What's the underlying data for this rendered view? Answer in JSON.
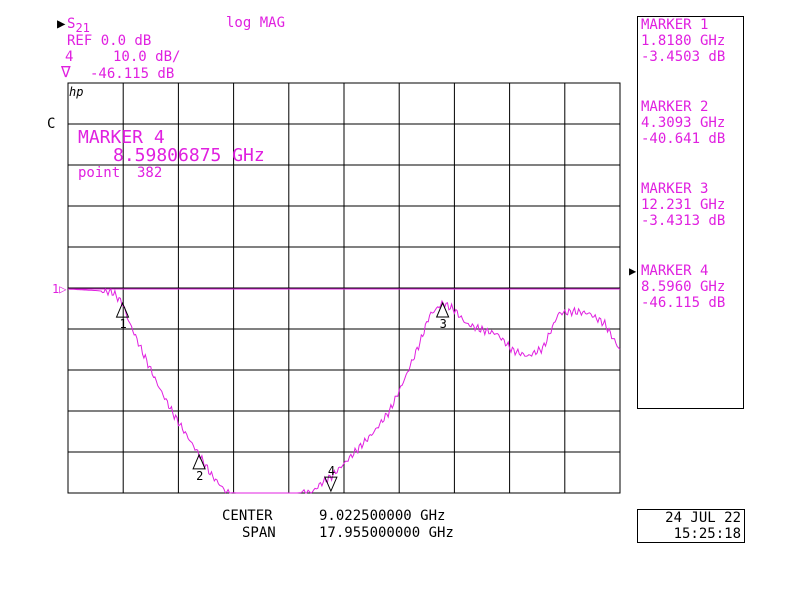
{
  "header": {
    "param_arrow": "▶",
    "param": "S",
    "param_sub": "21",
    "format": "log MAG",
    "ref": "REF 0.0 dB",
    "scale_channel": "4",
    "scale": "10.0 dB/",
    "delta_symbol": "∇",
    "marker_value": "-46.115 dB",
    "hp_logo": "hp",
    "cal_flag": "C"
  },
  "active_marker_box": {
    "title": "MARKER 4",
    "frequency": "8.59806875 GHz",
    "point": "point  382"
  },
  "ref_label": "1▷",
  "marker_panel": [
    {
      "label": "MARKER 1",
      "freq": "1.8180 GHz",
      "value": "-3.4503 dB",
      "active": false
    },
    {
      "label": "MARKER 2",
      "freq": "4.3093 GHz",
      "value": "-40.641 dB",
      "active": false
    },
    {
      "label": "MARKER 3",
      "freq": "12.231 GHz",
      "value": "-3.4313 dB",
      "active": false
    },
    {
      "label": "MARKER 4",
      "freq": "8.5960 GHz",
      "value": "-46.115 dB",
      "active": true
    }
  ],
  "active_pointer": "▶",
  "footer": {
    "center_label": "CENTER",
    "center_value": "9.022500000 GHz",
    "span_label": "SPAN",
    "span_value": "17.955000000 GHz"
  },
  "datetime": {
    "date": "24 JUL 22",
    "time": "15:25:18"
  },
  "colors": {
    "trace": "#e020e0",
    "grid": "#000000",
    "background": "#ffffff"
  },
  "chart_data": {
    "type": "line",
    "xlabel": "",
    "ylabel": "",
    "xlim": [
      0.045,
      18.0
    ],
    "ylim": [
      -50,
      0
    ],
    "reference_level_db": 0,
    "grid": true,
    "series": [
      {
        "x": [
          0.045,
          0.5,
          1.0,
          1.5,
          1.818,
          2.0,
          2.5,
          3.0,
          3.5,
          4.0,
          4.3093,
          4.7,
          5.2,
          5.5,
          6.0,
          6.5,
          7.0,
          7.5,
          8.0,
          8.3,
          8.596,
          9.0,
          9.5,
          10.0,
          10.5,
          11.0,
          11.5,
          11.8,
          12.231,
          12.6,
          13.0,
          13.5,
          14.0,
          14.5,
          15.0,
          15.5,
          16.0,
          16.5,
          17.0,
          17.5,
          18.0
        ],
        "y": [
          0.0,
          -0.2,
          -0.4,
          -0.8,
          -3.45,
          -7.5,
          -16.0,
          -24.0,
          -31.0,
          -37.0,
          -40.6,
          -45.5,
          -49.8,
          -50.0,
          -50.0,
          -50.0,
          -50.0,
          -50.0,
          -49.7,
          -47.5,
          -46.1,
          -43.0,
          -39.0,
          -35.0,
          -30.0,
          -22.0,
          -13.0,
          -6.5,
          -3.43,
          -5.0,
          -8.5,
          -10.0,
          -11.0,
          -15.0,
          -16.5,
          -14.5,
          -6.0,
          -5.5,
          -6.0,
          -8.5,
          -15.0
        ]
      }
    ],
    "markers": [
      {
        "id": "1",
        "x": 1.818,
        "y": -3.4503
      },
      {
        "id": "2",
        "x": 4.3093,
        "y": -40.641
      },
      {
        "id": "3",
        "x": 12.231,
        "y": -3.4313
      },
      {
        "id": "4",
        "x": 8.596,
        "y": -46.115
      }
    ]
  }
}
